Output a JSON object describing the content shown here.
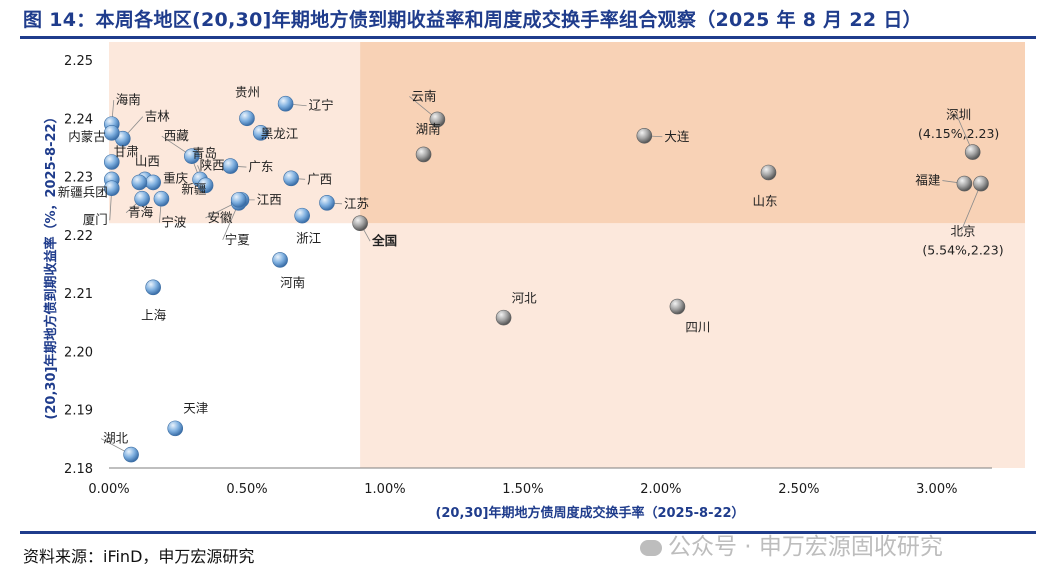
{
  "header": {
    "title": "图 14：本周各地区(20,30]年期地方债到期收益率和周度成交换手率组合观察（2025 年 8 月 22 日）"
  },
  "footer": {
    "source": "资料来源：iFinD，申万宏源研究",
    "watermark": "公众号 · 申万宏源固收研究"
  },
  "colors": {
    "title": "#1f3c8c",
    "shade_light": "#fce8dc",
    "shade_dark": "#f8d2b6",
    "point_blue": "#5b8fc7",
    "point_grey": "#8c8c8c",
    "highlight": "#e00000"
  },
  "chart_data": {
    "type": "scatter",
    "xlabel": "(20,30]年期地方债周度成交换手率（2025-8-22）",
    "ylabel": "(20,30]年期地方债到期收益率（%，2025-8-22）",
    "xlim": [
      0,
      3.2
    ],
    "ylim": [
      2.18,
      2.25
    ],
    "x_ticks": [
      "0.00%",
      "0.50%",
      "1.00%",
      "1.50%",
      "2.00%",
      "2.50%",
      "3.00%"
    ],
    "y_ticks": [
      "2.18",
      "2.19",
      "2.20",
      "2.21",
      "2.22",
      "2.23",
      "2.24",
      "2.25"
    ],
    "grid": false,
    "reference_point": {
      "name": "全国",
      "x": 0.91,
      "y": 2.222
    },
    "points": [
      {
        "name": "海南",
        "x": 0.01,
        "y": 2.239,
        "group": "blue"
      },
      {
        "name": "吉林",
        "x": 0.05,
        "y": 2.2365,
        "group": "blue"
      },
      {
        "name": "内蒙古",
        "x": 0.01,
        "y": 2.2375,
        "group": "blue"
      },
      {
        "name": "山西",
        "x": 0.13,
        "y": 2.2295,
        "group": "blue"
      },
      {
        "name": "甘肃",
        "x": 0.01,
        "y": 2.2325,
        "group": "blue"
      },
      {
        "name": "重庆",
        "x": 0.16,
        "y": 2.229,
        "group": "blue"
      },
      {
        "name": "新疆兵团",
        "x": 0.01,
        "y": 2.2295,
        "group": "blue"
      },
      {
        "name": "厦门",
        "x": 0.01,
        "y": 2.228,
        "group": "blue"
      },
      {
        "name": "青海",
        "x": 0.12,
        "y": 2.2262,
        "group": "blue"
      },
      {
        "name": "宁波",
        "x": 0.19,
        "y": 2.2262,
        "group": "blue"
      },
      {
        "name": "西藏",
        "x": 0.3,
        "y": 2.2335,
        "group": "blue"
      },
      {
        "name": "青岛",
        "x": 0.33,
        "y": 2.2295,
        "group": "blue"
      },
      {
        "name": "新疆",
        "x": 0.11,
        "y": 2.229,
        "group": "blue"
      },
      {
        "name": "陕西",
        "x": 0.35,
        "y": 2.2285,
        "group": "blue"
      },
      {
        "name": "安徽",
        "x": 0.48,
        "y": 2.226,
        "group": "blue"
      },
      {
        "name": "贵州",
        "x": 0.5,
        "y": 2.24,
        "group": "blue"
      },
      {
        "name": "黑龙江",
        "x": 0.55,
        "y": 2.2375,
        "group": "blue"
      },
      {
        "name": "广东",
        "x": 0.44,
        "y": 2.2318,
        "group": "blue"
      },
      {
        "name": "宁夏",
        "x": 0.47,
        "y": 2.2255,
        "group": "blue"
      },
      {
        "name": "江西",
        "x": 0.47,
        "y": 2.226,
        "group": "blue"
      },
      {
        "name": "辽宁",
        "x": 0.64,
        "y": 2.2425,
        "group": "blue"
      },
      {
        "name": "广西",
        "x": 0.66,
        "y": 2.2297,
        "group": "blue"
      },
      {
        "name": "浙江",
        "x": 0.7,
        "y": 2.2233,
        "group": "blue"
      },
      {
        "name": "江苏",
        "x": 0.79,
        "y": 2.2255,
        "group": "blue"
      },
      {
        "name": "河南",
        "x": 0.62,
        "y": 2.2157,
        "group": "blue"
      },
      {
        "name": "上海",
        "x": 0.16,
        "y": 2.211,
        "group": "blue"
      },
      {
        "name": "天津",
        "x": 0.24,
        "y": 2.1868,
        "group": "blue"
      },
      {
        "name": "湖北",
        "x": 0.08,
        "y": 2.1823,
        "group": "blue"
      },
      {
        "name": "云南",
        "x": 1.19,
        "y": 2.2398,
        "group": "grey"
      },
      {
        "name": "湖南",
        "x": 1.14,
        "y": 2.2338,
        "group": "grey"
      },
      {
        "name": "大连",
        "x": 1.94,
        "y": 2.237,
        "group": "grey"
      },
      {
        "name": "山东",
        "x": 2.39,
        "y": 2.2307,
        "group": "grey"
      },
      {
        "name": "河北",
        "x": 1.43,
        "y": 2.2058,
        "group": "grey"
      },
      {
        "name": "四川",
        "x": 2.06,
        "y": 2.2077,
        "group": "grey"
      },
      {
        "name": "深圳",
        "x": 3.13,
        "y": 2.2342,
        "group": "grey",
        "note": "(4.15%,2.23)"
      },
      {
        "name": "福建",
        "x": 3.1,
        "y": 2.2288,
        "group": "grey"
      },
      {
        "name": "北京",
        "x": 3.16,
        "y": 2.2288,
        "group": "grey",
        "note": "(5.54%,2.23)"
      }
    ]
  }
}
